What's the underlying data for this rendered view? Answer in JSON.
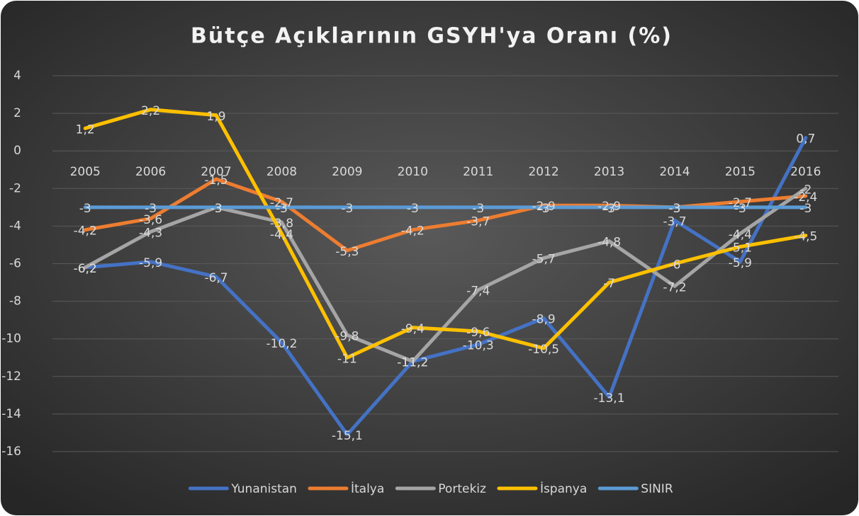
{
  "chart_data": {
    "type": "line",
    "title": "Bütçe Açıklarının GSYH'ya Oranı (%)",
    "categories": [
      "2005",
      "2006",
      "2007",
      "2008",
      "2009",
      "2010",
      "2011",
      "2012",
      "2013",
      "2014",
      "2015",
      "2016"
    ],
    "ylim": [
      -16,
      4
    ],
    "yticks": [
      -16,
      -14,
      -12,
      -10,
      -8,
      -6,
      -4,
      -2,
      0,
      2,
      4
    ],
    "grid": true,
    "legend": "bottom",
    "series": [
      {
        "name": "Yunanistan",
        "color": "#4472c4",
        "values": [
          -6.2,
          -5.9,
          -6.7,
          -10.2,
          -15.1,
          -11.2,
          -10.3,
          -8.9,
          -13.1,
          -3.7,
          -5.9,
          0.7
        ],
        "value_labels": [
          "-6,2",
          "-5,9",
          "-6,7",
          "-10,2",
          "-15,1",
          "-11,2",
          "-10,3",
          "-8,9",
          "-13,1",
          "-3,7",
          "-5,9",
          "0,7"
        ]
      },
      {
        "name": "İtalya",
        "color": "#ed7d31",
        "values": [
          -4.2,
          -3.6,
          -1.5,
          -2.7,
          -5.3,
          -4.2,
          -3.7,
          -2.9,
          -2.9,
          -3,
          -2.7,
          -2.4
        ],
        "value_labels": [
          "-4,2",
          "-3,6",
          "-1,5",
          "-2,7",
          "-5,3",
          "-4,2",
          "-3,7",
          "-2,9",
          "-2,9",
          "-3",
          "-2,7",
          "-2,4"
        ]
      },
      {
        "name": "Portekiz",
        "color": "#a5a5a5",
        "values": [
          -6.2,
          -4.3,
          -3,
          -3.8,
          -9.8,
          -11.2,
          -7.4,
          -5.7,
          -4.8,
          -7.2,
          -4.4,
          -2
        ],
        "value_labels": [
          "-6,2",
          "-4,3",
          "-3",
          "-3,8",
          "-9,8",
          "-11,2",
          "-7,4",
          "-5,7",
          "-4,8",
          "-7,2",
          "-4,4",
          "-2"
        ]
      },
      {
        "name": "İspanya",
        "color": "#ffc000",
        "values": [
          1.2,
          2.2,
          1.9,
          -4.4,
          -11,
          -9.4,
          -9.6,
          -10.5,
          -7,
          -6,
          -5.1,
          -4.5
        ],
        "value_labels": [
          "1,2",
          "2,2",
          "1,9",
          "-4,4",
          "-11",
          "-9,4",
          "-9,6",
          "-10,5",
          "-7",
          "-6",
          "-5,1",
          "-4,5"
        ]
      },
      {
        "name": "SINIR",
        "color": "#5b9bd5",
        "values": [
          -3,
          -3,
          -3,
          -3,
          -3,
          -3,
          -3,
          -3,
          -3,
          -3,
          -3,
          -3
        ],
        "value_labels": [
          "-3",
          "-3",
          "-3",
          "-3",
          "-3",
          "-3",
          "-3",
          "-3",
          "-3",
          "-3",
          "-3",
          "-3"
        ]
      }
    ]
  }
}
